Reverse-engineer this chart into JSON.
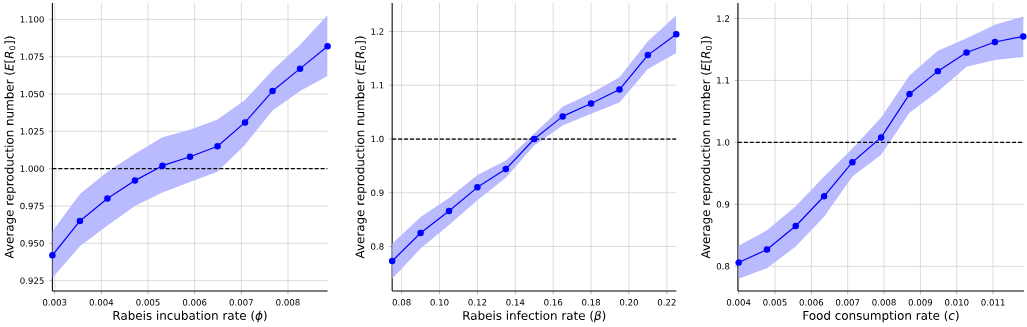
{
  "chart_data": [
    {
      "type": "line",
      "xlabel": "Rabeis incubation rate (*ϕ*)",
      "ylabel": "Average reproduction number (*E*[*R*$_{0}$])",
      "x": [
        0.00295,
        0.00354,
        0.00413,
        0.00472,
        0.00531,
        0.0059,
        0.00649,
        0.00708,
        0.00767,
        0.00826,
        0.00885
      ],
      "series": [
        {
          "color": "#0000ff",
          "values": [
            0.942,
            0.965,
            0.98,
            0.992,
            1.002,
            1.008,
            1.015,
            1.031,
            1.052,
            1.067,
            1.082
          ],
          "upper": [
            0.958,
            0.983,
            0.998,
            1.01,
            1.021,
            1.026,
            1.033,
            1.046,
            1.066,
            1.083,
            1.103
          ],
          "lower": [
            0.927,
            0.948,
            0.962,
            0.975,
            0.984,
            0.991,
            0.998,
            1.016,
            1.039,
            1.052,
            1.062
          ]
        }
      ],
      "xlim": [
        0.00295,
        0.00885
      ],
      "ylim": [
        0.918,
        1.111
      ],
      "xticks": [
        {
          "value": 0.003,
          "label": "0.003"
        },
        {
          "value": 0.004,
          "label": "0.004"
        },
        {
          "value": 0.005,
          "label": "0.005"
        },
        {
          "value": 0.006,
          "label": "0.006"
        },
        {
          "value": 0.007,
          "label": "0.007"
        },
        {
          "value": 0.008,
          "label": "0.008"
        }
      ],
      "yticks": [
        {
          "value": 0.925,
          "label": "0.925"
        },
        {
          "value": 0.95,
          "label": "0.950"
        },
        {
          "value": 0.975,
          "label": "0.975"
        },
        {
          "value": 1.0,
          "label": "1.000"
        },
        {
          "value": 1.025,
          "label": "1.025"
        },
        {
          "value": 1.05,
          "label": "1.050"
        },
        {
          "value": 1.075,
          "label": "1.075"
        },
        {
          "value": 1.1,
          "label": "1.100"
        }
      ],
      "ref_lines": [
        {
          "axis": "y",
          "value": 1.0,
          "color": "#000000",
          "line_style": "dashed"
        }
      ],
      "grid": true,
      "marker": "circle",
      "line_style": "solid"
    },
    {
      "type": "line",
      "xlabel": "Rabeis infection rate (*β*)",
      "ylabel": "Average reproduction number (*E*[*R*$_{0}$])",
      "x": [
        0.075,
        0.09,
        0.105,
        0.12,
        0.135,
        0.15,
        0.165,
        0.18,
        0.195,
        0.21,
        0.225
      ],
      "series": [
        {
          "color": "#0000ff",
          "values": [
            0.773,
            0.825,
            0.866,
            0.91,
            0.944,
            1.0,
            1.042,
            1.066,
            1.092,
            1.156,
            1.195
          ],
          "upper": [
            0.805,
            0.855,
            0.89,
            0.933,
            0.96,
            1.01,
            1.06,
            1.085,
            1.115,
            1.182,
            1.23
          ],
          "lower": [
            0.74,
            0.796,
            0.84,
            0.886,
            0.928,
            0.988,
            1.025,
            1.047,
            1.068,
            1.13,
            1.16
          ]
        }
      ],
      "xlim": [
        0.075,
        0.225
      ],
      "ylim": [
        0.717,
        1.253
      ],
      "xticks": [
        {
          "value": 0.08,
          "label": "0.08"
        },
        {
          "value": 0.1,
          "label": "0.10"
        },
        {
          "value": 0.12,
          "label": "0.12"
        },
        {
          "value": 0.14,
          "label": "0.14"
        },
        {
          "value": 0.16,
          "label": "0.16"
        },
        {
          "value": 0.18,
          "label": "0.18"
        },
        {
          "value": 0.2,
          "label": "0.20"
        },
        {
          "value": 0.22,
          "label": "0.22"
        }
      ],
      "yticks": [
        {
          "value": 0.8,
          "label": "0.8"
        },
        {
          "value": 0.9,
          "label": "0.9"
        },
        {
          "value": 1.0,
          "label": "1.0"
        },
        {
          "value": 1.1,
          "label": "1.1"
        },
        {
          "value": 1.2,
          "label": "1.2"
        }
      ],
      "ref_lines": [
        {
          "axis": "y",
          "value": 1.0,
          "color": "#000000",
          "line_style": "dashed"
        }
      ],
      "grid": true,
      "marker": "circle",
      "line_style": "solid"
    },
    {
      "type": "line",
      "xlabel": "Food consumption rate (*c*)",
      "ylabel": "Average reproduction number (*E*[*R*$_{0}$])",
      "x": [
        0.004,
        0.00478,
        0.00557,
        0.00635,
        0.00713,
        0.00792,
        0.0087,
        0.00948,
        0.01027,
        0.01105,
        0.01183
      ],
      "series": [
        {
          "color": "#0000ff",
          "values": [
            0.806,
            0.827,
            0.865,
            0.913,
            0.968,
            1.008,
            1.078,
            1.115,
            1.145,
            1.162,
            1.171
          ],
          "upper": [
            0.833,
            0.858,
            0.897,
            0.945,
            0.99,
            1.04,
            1.108,
            1.148,
            1.168,
            1.19,
            1.203
          ],
          "lower": [
            0.78,
            0.797,
            0.832,
            0.88,
            0.945,
            0.98,
            1.048,
            1.082,
            1.122,
            1.133,
            1.138
          ]
        }
      ],
      "xlim": [
        0.00398,
        0.01185
      ],
      "ylim": [
        0.76,
        1.225
      ],
      "xticks": [
        {
          "value": 0.004,
          "label": "0.004"
        },
        {
          "value": 0.005,
          "label": "0.005"
        },
        {
          "value": 0.006,
          "label": "0.006"
        },
        {
          "value": 0.007,
          "label": "0.007"
        },
        {
          "value": 0.008,
          "label": "0.008"
        },
        {
          "value": 0.009,
          "label": "0.009"
        },
        {
          "value": 0.01,
          "label": "0.010"
        },
        {
          "value": 0.011,
          "label": "0.011"
        }
      ],
      "yticks": [
        {
          "value": 0.8,
          "label": "0.8"
        },
        {
          "value": 0.9,
          "label": "0.9"
        },
        {
          "value": 1.0,
          "label": "1.0"
        },
        {
          "value": 1.1,
          "label": "1.1"
        },
        {
          "value": 1.2,
          "label": "1.2"
        }
      ],
      "ref_lines": [
        {
          "axis": "y",
          "value": 1.0,
          "color": "#000000",
          "line_style": "dashed"
        }
      ],
      "grid": true,
      "marker": "circle",
      "line_style": "solid"
    }
  ]
}
